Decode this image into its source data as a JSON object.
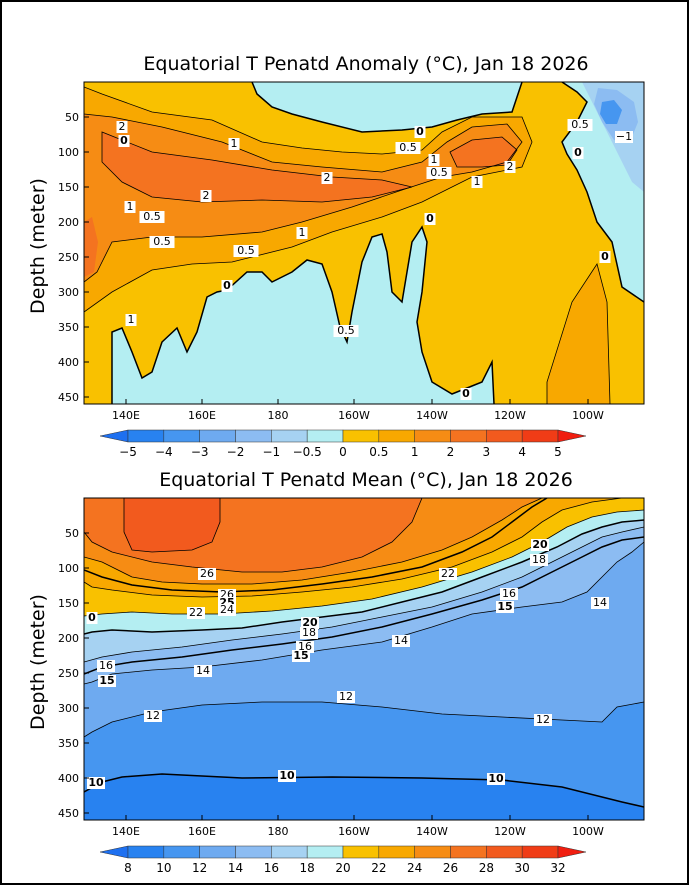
{
  "chart_data": [
    {
      "type": "heatmap",
      "title": "Equatorial T Penatd Anomaly (°C), Jan 18 2026",
      "ylabel": "Depth (meter)",
      "xlabel": "",
      "x_ticks": [
        "140E",
        "160E",
        "180",
        "160W",
        "140W",
        "120W",
        "100W"
      ],
      "y_ticks": [
        "50",
        "100",
        "150",
        "200",
        "250",
        "300",
        "350",
        "400",
        "450"
      ],
      "ylim": [
        0,
        460
      ],
      "colorbar": {
        "levels": [
          "−5",
          "−4",
          "−3",
          "−2",
          "−1",
          "−0.5",
          "0",
          "0.5",
          "1",
          "2",
          "3",
          "4",
          "5"
        ],
        "colors": [
          "#1e70f0",
          "#2882f0",
          "#4696f0",
          "#6eaaf0",
          "#8cbcf2",
          "#a6d2f2",
          "#b4eef2",
          "#f9c100",
          "#f8a800",
          "#f68c14",
          "#f47320",
          "#f25a1e",
          "#f03c16",
          "#f01e10"
        ]
      },
      "contour_labels": [
        "2",
        "1",
        "0",
        "0.5",
        "1",
        "0.5",
        "2",
        "1",
        "0.5",
        "2",
        "1",
        "−1",
        "0.5",
        "0",
        "2",
        "1",
        "0.5",
        "0.5",
        "0",
        "1",
        "0.5",
        "0",
        "0",
        "0",
        "0"
      ]
    },
    {
      "type": "heatmap",
      "title": "Equatorial T Penatd Mean (°C), Jan 18 2026",
      "ylabel": "Depth (meter)",
      "xlabel": "",
      "x_ticks": [
        "140E",
        "160E",
        "180",
        "160W",
        "140W",
        "120W",
        "100W"
      ],
      "y_ticks": [
        "50",
        "100",
        "150",
        "200",
        "250",
        "300",
        "350",
        "400",
        "450"
      ],
      "ylim": [
        0,
        460
      ],
      "colorbar": {
        "levels": [
          "8",
          "10",
          "12",
          "14",
          "16",
          "18",
          "20",
          "22",
          "24",
          "26",
          "28",
          "30",
          "32"
        ],
        "colors": [
          "#1e70f0",
          "#2882f0",
          "#4696f0",
          "#6eaaf0",
          "#8cbcf2",
          "#a6d2f2",
          "#b4eef2",
          "#f9c100",
          "#f8a800",
          "#f68c14",
          "#f47320",
          "#f25a1e",
          "#f03c16",
          "#f01e10"
        ]
      },
      "contour_labels": [
        "26",
        "26",
        "25",
        "24",
        "22",
        "20",
        "18",
        "16",
        "15",
        "14",
        "22",
        "20",
        "18",
        "16",
        "15",
        "14",
        "16",
        "15",
        "14",
        "12",
        "12",
        "12",
        "10",
        "10",
        "10",
        "0"
      ]
    }
  ]
}
